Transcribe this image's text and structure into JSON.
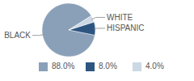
{
  "chart_data": {
    "type": "pie",
    "categories": [
      "BLACK",
      "HISPANIC",
      "WHITE"
    ],
    "values": [
      88,
      8,
      4
    ],
    "value_labels": [
      "88.0%",
      "8.0%",
      "4.0%"
    ],
    "colors": [
      "#8aa0b8",
      "#2d5580",
      "#ccd8e4"
    ],
    "legend": "bottom"
  }
}
